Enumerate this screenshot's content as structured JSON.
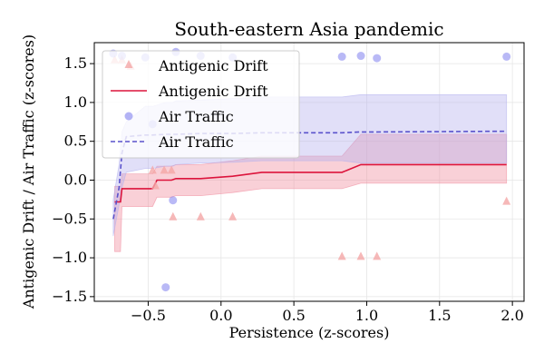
{
  "chart_data": {
    "type": "line",
    "title": "South-eastern Asia pandemic",
    "xlabel": "Persistence (z-scores)",
    "ylabel": "Antigenic Drift / Air Traffic (z-scores)",
    "xlim": [
      -0.87,
      2.08
    ],
    "ylim": [
      -1.56,
      1.77
    ],
    "xticks": [
      -0.5,
      0.0,
      0.5,
      1.0,
      1.5,
      2.0
    ],
    "xtick_labels": [
      "−0.5",
      "0.0",
      "0.5",
      "1.0",
      "1.5",
      "2.0"
    ],
    "yticks": [
      -1.5,
      -1.0,
      -0.5,
      0.0,
      0.5,
      1.0,
      1.5
    ],
    "ytick_labels": [
      "−1.5",
      "−1.0",
      "−0.5",
      "0.0",
      "0.5",
      "1.0",
      "1.5"
    ],
    "grid": true,
    "legend_position": "top-left",
    "series": [
      {
        "name": "Antigenic Drift",
        "kind": "scatter",
        "marker": "triangle",
        "color": "#f4a6a6",
        "points": [
          [
            -0.73,
            1.55
          ],
          [
            -0.68,
            1.55
          ],
          [
            -0.62,
            1.47
          ],
          [
            -0.47,
            0.13
          ],
          [
            -0.45,
            -0.07
          ],
          [
            -0.39,
            0.13
          ],
          [
            -0.34,
            0.13
          ],
          [
            -0.33,
            -0.47
          ],
          [
            -0.14,
            -0.47
          ],
          [
            0.08,
            -0.47
          ],
          [
            0.83,
            -0.98
          ],
          [
            0.96,
            -0.98
          ],
          [
            1.07,
            -0.98
          ],
          [
            1.96,
            -0.27
          ]
        ]
      },
      {
        "name": "Antigenic Drift",
        "kind": "line",
        "color": "#dc143c",
        "band_color": "#f08a9c",
        "x": [
          -0.73,
          -0.69,
          -0.68,
          -0.65,
          -0.47,
          -0.44,
          -0.34,
          -0.31,
          -0.14,
          0.08,
          0.28,
          0.83,
          0.96,
          1.07,
          1.96
        ],
        "y": [
          -0.28,
          -0.28,
          -0.11,
          -0.11,
          -0.11,
          0.0,
          0.0,
          0.02,
          0.02,
          0.05,
          0.1,
          0.1,
          0.2,
          0.2,
          0.2
        ],
        "lower": [
          -0.92,
          -0.92,
          -0.34,
          -0.34,
          -0.34,
          -0.22,
          -0.22,
          -0.2,
          -0.2,
          -0.16,
          -0.11,
          -0.11,
          -0.04,
          -0.04,
          -0.04
        ],
        "upper": [
          -0.08,
          -0.08,
          0.08,
          0.08,
          0.08,
          0.18,
          0.18,
          0.2,
          0.2,
          0.25,
          0.31,
          0.31,
          0.59,
          0.59,
          0.59
        ]
      },
      {
        "name": "Air Traffic",
        "kind": "scatter",
        "marker": "circle",
        "color": "#8080ee",
        "points": [
          [
            -0.74,
            1.63
          ],
          [
            -0.68,
            1.6
          ],
          [
            -0.52,
            1.58
          ],
          [
            -0.47,
            0.72
          ],
          [
            -0.38,
            -1.38
          ],
          [
            -0.33,
            -0.26
          ],
          [
            -0.31,
            1.65
          ],
          [
            -0.14,
            1.6
          ],
          [
            0.08,
            1.58
          ],
          [
            0.83,
            1.59
          ],
          [
            0.96,
            1.6
          ],
          [
            1.07,
            1.57
          ],
          [
            1.96,
            1.59
          ]
        ]
      },
      {
        "name": "Air Traffic",
        "kind": "line",
        "dashed": true,
        "color": "#5a52cc",
        "band_color": "#b3b0ee",
        "x": [
          -0.74,
          -0.7,
          -0.68,
          -0.65,
          -0.52,
          -0.47,
          -0.38,
          -0.33,
          -0.31,
          -0.14,
          0.08,
          0.28,
          0.83,
          0.96,
          1.07,
          1.96
        ],
        "y": [
          -0.5,
          -0.1,
          0.35,
          0.56,
          0.58,
          0.58,
          0.59,
          0.59,
          0.59,
          0.6,
          0.6,
          0.61,
          0.61,
          0.62,
          0.62,
          0.63
        ],
        "lower": [
          -0.72,
          -0.32,
          -0.1,
          0.1,
          0.15,
          0.15,
          0.18,
          0.18,
          0.2,
          0.22,
          0.23,
          0.25,
          0.25,
          0.22,
          0.22,
          0.22
        ],
        "upper": [
          -0.25,
          0.2,
          0.62,
          0.75,
          0.95,
          0.95,
          1.0,
          1.0,
          1.02,
          1.03,
          1.05,
          1.07,
          1.07,
          1.1,
          1.1,
          1.1
        ]
      }
    ]
  }
}
